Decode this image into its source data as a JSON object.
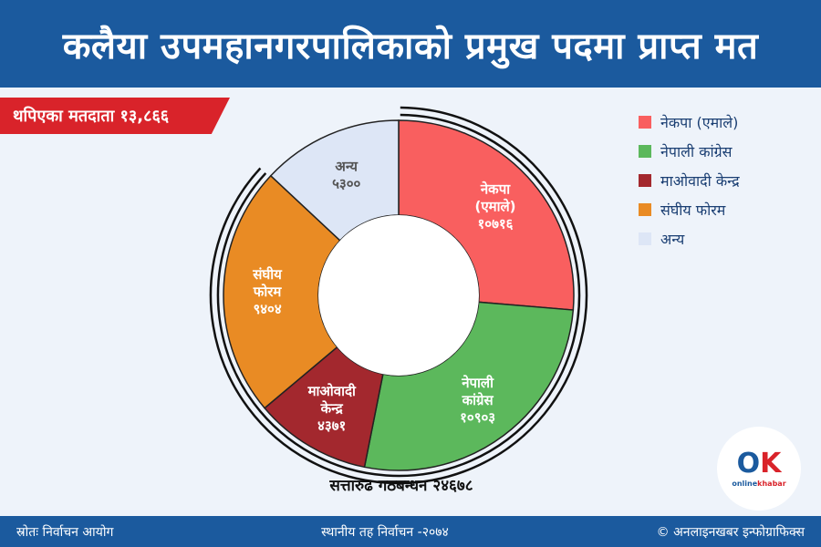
{
  "header": {
    "title": "कलैया उपमहानगरपालिकाको प्रमुख पदमा प्राप्त मत"
  },
  "badge": {
    "voters": "थपिएका मतदाता १३,८६६"
  },
  "chart_data": {
    "type": "pie",
    "title": "कलैया उपमहानगरपालिकाको प्रमुख पदमा प्राप्त मत",
    "categories": [
      "नेकपा (एमाले)",
      "नेपाली कांग्रेस",
      "माओवादी केन्द्र",
      "संघीय फोरम",
      "अन्य"
    ],
    "values": [
      10716,
      10903,
      4371,
      9404,
      5300
    ],
    "colors": [
      "#f95f5f",
      "#5cb85c",
      "#a3282e",
      "#e98b24",
      "#dde6f6"
    ],
    "slice_labels": [
      [
        "नेकपा",
        "(एमाले)",
        "१०७१६"
      ],
      [
        "नेपाली",
        "कांग्रेस",
        "१०९०३"
      ],
      [
        "माओवादी",
        "केन्द्र",
        "४३७१"
      ],
      [
        "संघीय",
        "फोरम",
        "९४०४"
      ],
      [
        "अन्य",
        "५३००"
      ]
    ],
    "legend_position": "right",
    "annotation": "सत्तारुढ गठबन्धन २४६७८"
  },
  "logo": {
    "mark_o": "O",
    "mark_k": "K",
    "word_a": "online",
    "word_b": "khabar"
  },
  "footer": {
    "source": "स्रोतः निर्वाचन आयोग",
    "election": "स्थानीय तह निर्वाचन -२०७४",
    "credit": "© अनलाइनखबर इन्फोग्राफिक्स"
  }
}
